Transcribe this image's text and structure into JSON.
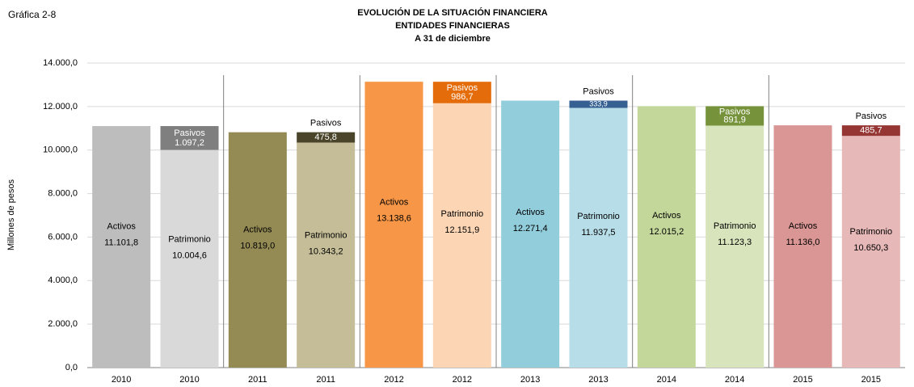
{
  "chart_data": {
    "type": "stacked-bar",
    "figure_label": "Gráfica 2-8",
    "title_lines": [
      "EVOLUCIÓN DE LA SITUACIÓN FINANCIERA",
      "ENTIDADES FINANCIERAS",
      "A 31 de diciembre"
    ],
    "y_label": "Millones de pesos",
    "categories": [
      "2010",
      "2010",
      "2011",
      "2011",
      "2012",
      "2012",
      "2013",
      "2013",
      "2014",
      "2014",
      "2015",
      "2015"
    ],
    "series": [
      {
        "name": "Activos",
        "stack": "a",
        "colors": [
          "#bdbdbd",
          null,
          "#948a54",
          null,
          "#f79646",
          null,
          "#92cddc",
          null,
          "#c4d79b",
          null,
          "#da9694",
          null
        ],
        "values": [
          11101.8,
          null,
          10819.0,
          null,
          13138.6,
          null,
          12271.4,
          null,
          12015.2,
          null,
          11136.0,
          null
        ],
        "value_labels": [
          "11.101,8",
          null,
          "10.819,0",
          null,
          "13.138,6",
          null,
          "12.271,4",
          null,
          "12.015,2",
          null,
          "11.136,0",
          null
        ]
      },
      {
        "name": "Patrimonio",
        "stack": "b",
        "colors": [
          null,
          "#d9d9d9",
          null,
          "#c4bd97",
          null,
          "#fcd5b4",
          null,
          "#b7dee8",
          null,
          "#d8e4bc",
          null,
          "#e6b8b7"
        ],
        "values": [
          null,
          10004.6,
          null,
          10343.2,
          null,
          12151.9,
          null,
          11937.5,
          null,
          11123.3,
          null,
          10650.3
        ],
        "value_labels": [
          null,
          "10.004,6",
          null,
          "10.343,2",
          null,
          "12.151,9",
          null,
          "11.937,5",
          null,
          "11.123,3",
          null,
          "10.650,3"
        ]
      },
      {
        "name": "Pasivos",
        "stack": "b",
        "colors": [
          null,
          "#7f7f7f",
          null,
          "#4a452a",
          null,
          "#e46c0a",
          null,
          "#366092",
          null,
          "#76933c",
          null,
          "#963634"
        ],
        "values": [
          null,
          1097.2,
          null,
          475.8,
          null,
          986.7,
          null,
          333.9,
          null,
          891.9,
          null,
          485.7
        ],
        "value_labels": [
          null,
          "1.097,2",
          null,
          "475,8",
          null,
          "986,7",
          null,
          "333,9",
          null,
          "891,9",
          null,
          "485,7"
        ]
      }
    ],
    "ylim": [
      0,
      14000
    ],
    "yticks": [
      {
        "value": 0,
        "label": "0,0"
      },
      {
        "value": 2000,
        "label": "2.000,0"
      },
      {
        "value": 4000,
        "label": "4.000,0"
      },
      {
        "value": 6000,
        "label": "6.000,0"
      },
      {
        "value": 8000,
        "label": "8.000,0"
      },
      {
        "value": 10000,
        "label": "10.000,0"
      },
      {
        "value": 12000,
        "label": "12.000,0"
      },
      {
        "value": 14000,
        "label": "14.000,0"
      }
    ],
    "grid": true
  }
}
